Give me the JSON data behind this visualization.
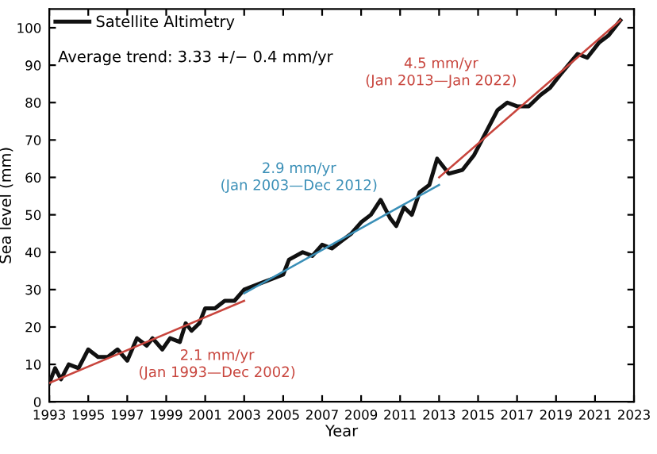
{
  "chart_data": {
    "type": "line",
    "xlabel": "Year",
    "ylabel": "Sea level (mm)",
    "xlim": [
      1993,
      2023
    ],
    "xticks": [
      1993,
      1995,
      1997,
      1999,
      2001,
      2003,
      2005,
      2007,
      2009,
      2011,
      2013,
      2015,
      2017,
      2019,
      2021,
      2023
    ],
    "ylim": [
      0,
      105
    ],
    "yticks": [
      0,
      10,
      20,
      30,
      40,
      50,
      60,
      70,
      80,
      90,
      100
    ],
    "grid": false,
    "legend": "top left",
    "line_style": "solid",
    "marker": "none",
    "series": [
      {
        "name": "Satellite Altimetry",
        "color": "#111111",
        "x": [
          1993,
          1993.3,
          1993.6,
          1994,
          1994.5,
          1995,
          1995.5,
          1996,
          1996.5,
          1997,
          1997.5,
          1998,
          1998.3,
          1998.8,
          1999.2,
          1999.7,
          2000,
          2000.3,
          2000.7,
          2001,
          2001.5,
          2002,
          2002.5,
          2003,
          2003.5,
          2004,
          2004.5,
          2005,
          2005.3,
          2006,
          2006.5,
          2007,
          2007.5,
          2008,
          2008.5,
          2009,
          2009.5,
          2010,
          2010.5,
          2010.8,
          2011.2,
          2011.6,
          2012,
          2012.5,
          2012.9,
          2013.5,
          2014.2,
          2014.8,
          2015.4,
          2016,
          2016.5,
          2017,
          2017.6,
          2018.2,
          2018.7,
          2019.3,
          2020.1,
          2020.6,
          2021.2,
          2021.7,
          2022.3
        ],
        "values": [
          5,
          9,
          6,
          10,
          9,
          14,
          12,
          12,
          14,
          11,
          17,
          15,
          17,
          14,
          17,
          16,
          21,
          19,
          21,
          25,
          25,
          27,
          27,
          30,
          31,
          32,
          33,
          34,
          38,
          40,
          39,
          42,
          41,
          43,
          45,
          48,
          50,
          54,
          49,
          47,
          52,
          50,
          56,
          58,
          65,
          61,
          62,
          66,
          72,
          78,
          80,
          79,
          79,
          82,
          84,
          88,
          93,
          92,
          96,
          98,
          102
        ]
      },
      {
        "color": "#c8453d",
        "x": [
          1993,
          2003
        ],
        "values": [
          5,
          27
        ]
      },
      {
        "color": "#3a8fb7",
        "x": [
          2003,
          2013
        ],
        "values": [
          29,
          58
        ]
      },
      {
        "color": "#c8453d",
        "x": [
          2013,
          2022.3
        ],
        "values": [
          60,
          102
        ]
      }
    ],
    "annotations": [
      "Average trend: 3.33 +/− 0.4 mm/yr",
      "2.1 mm/yr\n(Jan 1993—Dec 2002)",
      "2.9 mm/yr\n(Jan 2003—Dec 2012)",
      "4.5 mm/yr\n(Jan 2013—Jan 2022)"
    ]
  }
}
